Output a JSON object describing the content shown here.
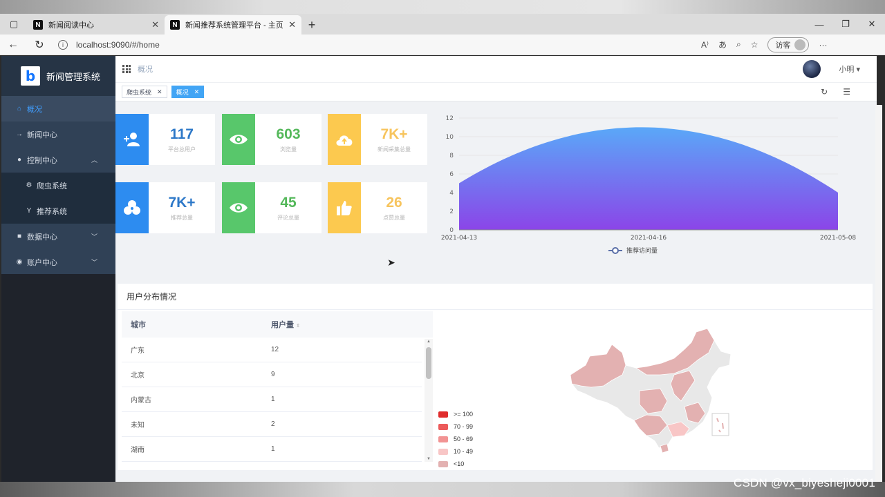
{
  "browser": {
    "tabs": [
      {
        "title": "新闻阅读中心",
        "favicon": "N"
      },
      {
        "title": "新闻推荐系统管理平台 - 主页",
        "favicon": "N"
      }
    ],
    "url": "localhost:9090/#/home",
    "guest_label": "访客"
  },
  "sidebar": {
    "app_name": "新闻管理系统",
    "items": [
      {
        "label": "概况",
        "icon": "home-icon"
      },
      {
        "label": "新闻中心",
        "icon": "arrow-right-icon"
      },
      {
        "label": "控制中心",
        "icon": "circle-icon"
      },
      {
        "label": "爬虫系统",
        "icon": "spider-icon"
      },
      {
        "label": "推荐系统",
        "icon": "recommend-icon"
      },
      {
        "label": "数据中心",
        "icon": "data-icon"
      },
      {
        "label": "账户中心",
        "icon": "user-icon"
      }
    ]
  },
  "header": {
    "breadcrumb": "概况",
    "username": "小明"
  },
  "tags": [
    {
      "label": "爬虫系统"
    },
    {
      "label": "概况"
    }
  ],
  "stats": [
    {
      "value": "117",
      "label": "平台总用户",
      "icon": "add-user-icon"
    },
    {
      "value": "603",
      "label": "浏览量",
      "icon": "eye-icon"
    },
    {
      "value": "7K+",
      "label": "新闻采集总量",
      "icon": "cloud-upload-icon"
    },
    {
      "value": "7K+",
      "label": "推荐总量",
      "icon": "cluster-icon"
    },
    {
      "value": "45",
      "label": "评论总量",
      "icon": "eye-icon"
    },
    {
      "value": "26",
      "label": "点赞总量",
      "icon": "thumbs-up-icon"
    }
  ],
  "chart_data": {
    "type": "area",
    "x": [
      "2021-04-13",
      "2021-04-16",
      "2021-05-08"
    ],
    "x_tick_labels": [
      "2021-04-13",
      "2021-04-16",
      "2021-05-08"
    ],
    "series": [
      {
        "name": "推荐访问量",
        "values": [
          5,
          11,
          4
        ]
      }
    ],
    "y_ticks": [
      0,
      2,
      4,
      6,
      8,
      10,
      12
    ],
    "ylim": [
      0,
      12
    ],
    "grid": true,
    "legend_position": "bottom-center",
    "colors": {
      "top": "#5aa8f8",
      "bottom": "#8b45e8"
    }
  },
  "user_distribution": {
    "title": "用户分布情况",
    "columns": [
      "城市",
      "用户量"
    ],
    "rows": [
      {
        "city": "广东",
        "count": "12"
      },
      {
        "city": "北京",
        "count": "9"
      },
      {
        "city": "内蒙古",
        "count": "1"
      },
      {
        "city": "未知",
        "count": "2"
      },
      {
        "city": "湖南",
        "count": "1"
      }
    ],
    "legend": [
      {
        "label": ">= 100",
        "color": "#e02c2c"
      },
      {
        "label": "70 - 99",
        "color": "#ec5a5a"
      },
      {
        "label": "50 - 69",
        "color": "#f29393"
      },
      {
        "label": "10 - 49",
        "color": "#f8c6c6"
      },
      {
        "label": "<10",
        "color": "#e3b1b1"
      }
    ]
  },
  "watermark": "CSDN @vx_biyesheji0001"
}
